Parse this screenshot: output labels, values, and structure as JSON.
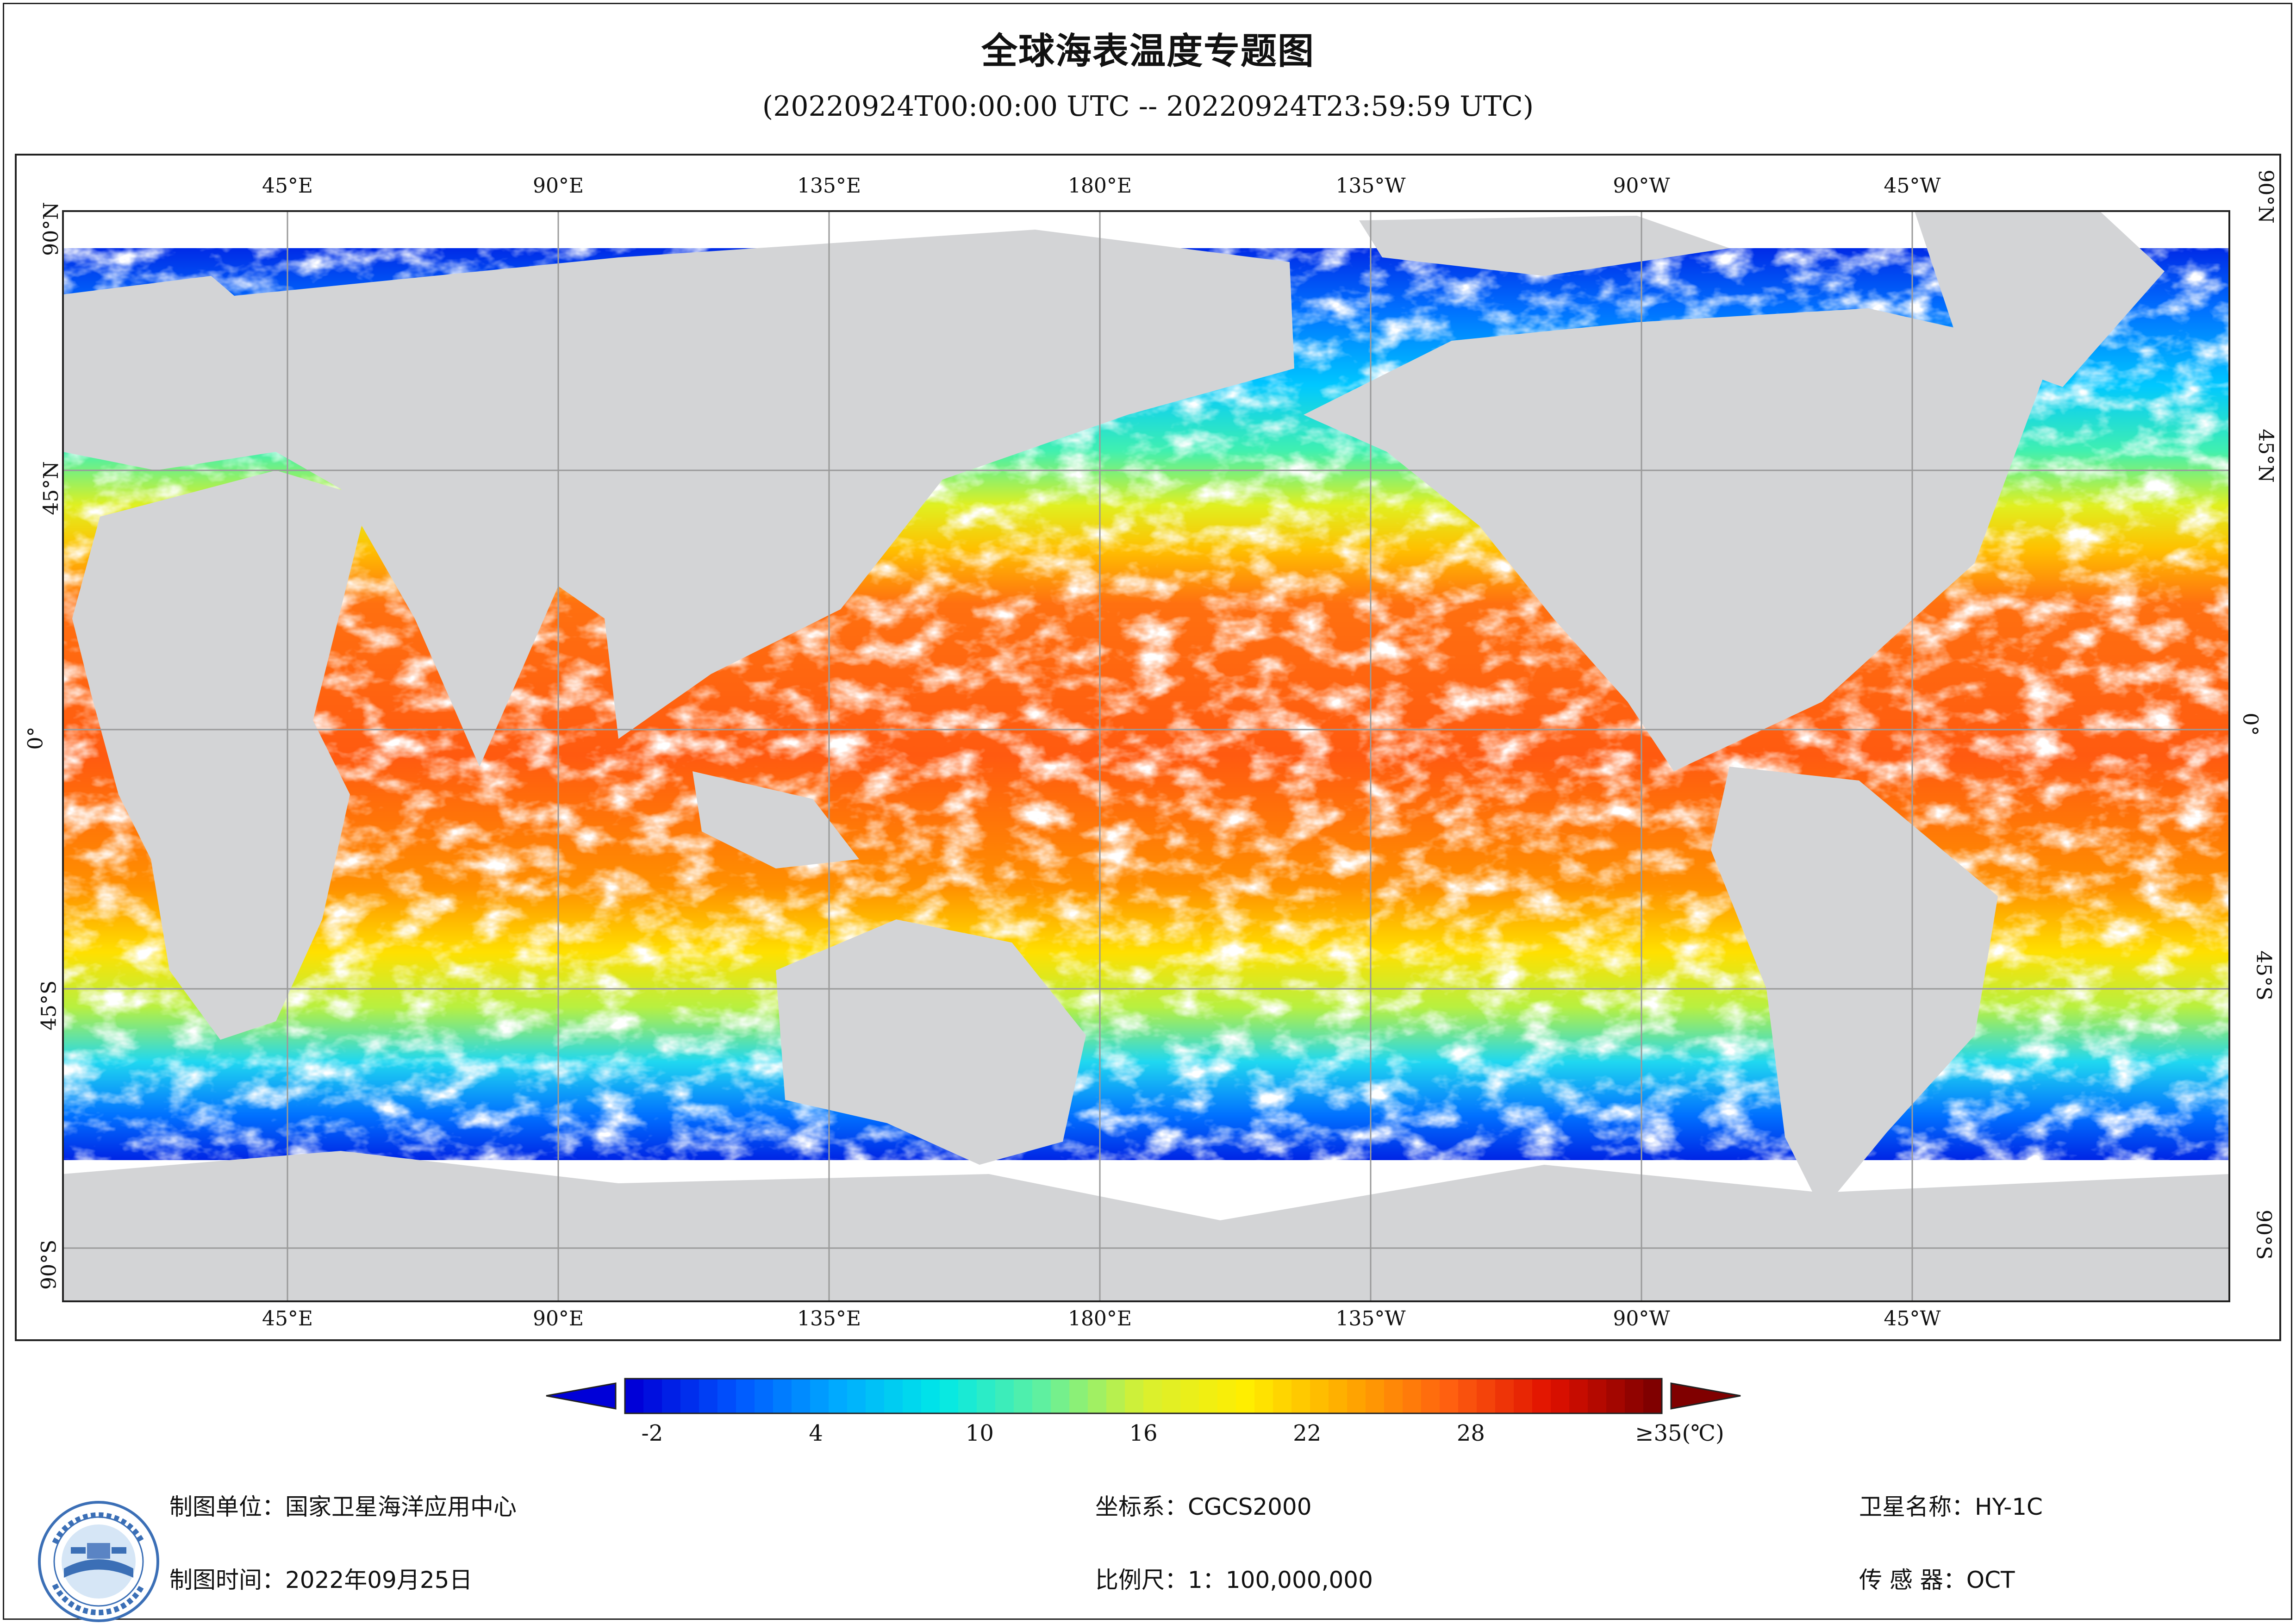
{
  "title": "全球海表温度专题图",
  "subtitle": "(20220924T00:00:00 UTC -- 20220924T23:59:59 UTC)",
  "axes": {
    "top_labels": [
      "45°E",
      "90°E",
      "135°E",
      "180°E",
      "135°W",
      "90°W",
      "45°W"
    ],
    "bottom_labels": [
      "45°E",
      "90°E",
      "135°E",
      "180°E",
      "135°W",
      "90°W",
      "45°W"
    ],
    "left_labels": [
      "90°N",
      "45°N",
      "0°",
      "45°S",
      "90°S"
    ],
    "right_labels": [
      "90°N",
      "45°N",
      "0°",
      "45°S",
      "90°S"
    ]
  },
  "colorbar": {
    "tick_labels": [
      "-2",
      "4",
      "10",
      "16",
      "22",
      "28",
      "≥35(℃)"
    ],
    "tick_values": [
      -2,
      4,
      10,
      16,
      22,
      28,
      35
    ],
    "range": [
      -3,
      35
    ],
    "colors": [
      "#0000d8",
      "#0055ff",
      "#00aaff",
      "#00e8e8",
      "#5ff0a0",
      "#d8f030",
      "#ffee00",
      "#ffaa00",
      "#ff6010",
      "#e01000",
      "#800000"
    ]
  },
  "footer": {
    "unit": "制图单位：国家卫星海洋应用中心",
    "time": "制图时间：2022年09月25日",
    "crs": "坐标系：CGCS2000",
    "scale": "比例尺：1：100,000,000",
    "satellite": "卫星名称：HY-1C",
    "sensor": "传 感 器：OCT"
  },
  "colors": {
    "land": "#d3d4d6",
    "nodata": "#ffffff",
    "grid": "#9a9a9a",
    "frame": "#222222"
  }
}
